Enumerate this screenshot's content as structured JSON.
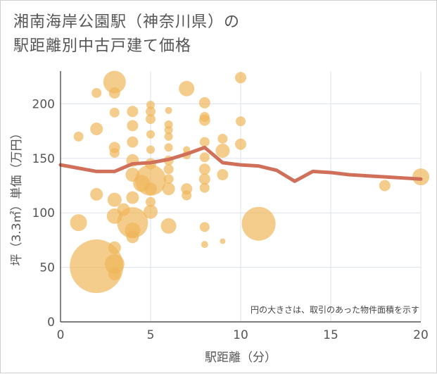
{
  "header": {
    "title_line1": "湘南海岸公園駅（神奈川県）の",
    "title_line2": "駅距離別中古戸建て価格"
  },
  "chart_data": {
    "type": "scatter",
    "title": "湘南海岸公園駅（神奈川県）の駅距離別中古戸建て価格",
    "xlabel": "駅距離（分）",
    "ylabel": "坪（3.3㎡）単価（万円）",
    "xlim": [
      0,
      20
    ],
    "ylim": [
      0,
      230
    ],
    "x_ticks": [
      0,
      5,
      10,
      15,
      20
    ],
    "y_ticks": [
      0,
      50,
      100,
      150,
      200
    ],
    "x_tick_labels": [
      "0",
      "5",
      "10",
      "15",
      "20"
    ],
    "y_tick_labels": [
      "0",
      "50",
      "100",
      "150",
      "200"
    ],
    "note": "円の大きさは、取引のあった物件面積を示す",
    "bubble_color": "#f0b65a",
    "line_color": "#d0705a",
    "bubbles": [
      {
        "x": 2,
        "y": 51,
        "s": 38
      },
      {
        "x": 3,
        "y": 53,
        "s": 14
      },
      {
        "x": 3,
        "y": 44,
        "s": 9
      },
      {
        "x": 3,
        "y": 68,
        "s": 9
      },
      {
        "x": 1,
        "y": 91,
        "s": 12
      },
      {
        "x": 2,
        "y": 117,
        "s": 9
      },
      {
        "x": 3,
        "y": 112,
        "s": 10
      },
      {
        "x": 3,
        "y": 97,
        "s": 11
      },
      {
        "x": 3.5,
        "y": 103,
        "s": 9
      },
      {
        "x": 4,
        "y": 91,
        "s": 22
      },
      {
        "x": 4,
        "y": 84,
        "s": 11
      },
      {
        "x": 4,
        "y": 78,
        "s": 9
      },
      {
        "x": 4,
        "y": 114,
        "s": 9
      },
      {
        "x": 4,
        "y": 135,
        "s": 10
      },
      {
        "x": 4,
        "y": 148,
        "s": 9
      },
      {
        "x": 4,
        "y": 165,
        "s": 8
      },
      {
        "x": 4,
        "y": 180,
        "s": 8
      },
      {
        "x": 4,
        "y": 193,
        "s": 8
      },
      {
        "x": 4.5,
        "y": 127,
        "s": 12
      },
      {
        "x": 5,
        "y": 130,
        "s": 22
      },
      {
        "x": 5,
        "y": 101,
        "s": 10
      },
      {
        "x": 5,
        "y": 110,
        "s": 7
      },
      {
        "x": 5,
        "y": 122,
        "s": 9
      },
      {
        "x": 5,
        "y": 145,
        "s": 8
      },
      {
        "x": 5,
        "y": 158,
        "s": 6
      },
      {
        "x": 5,
        "y": 172,
        "s": 6
      },
      {
        "x": 5,
        "y": 186,
        "s": 7
      },
      {
        "x": 5,
        "y": 193,
        "s": 7
      },
      {
        "x": 5,
        "y": 199,
        "s": 6
      },
      {
        "x": 6,
        "y": 88,
        "s": 11
      },
      {
        "x": 6,
        "y": 122,
        "s": 9
      },
      {
        "x": 6,
        "y": 131,
        "s": 7
      },
      {
        "x": 6,
        "y": 140,
        "s": 7
      },
      {
        "x": 6,
        "y": 148,
        "s": 7
      },
      {
        "x": 6,
        "y": 160,
        "s": 6
      },
      {
        "x": 6,
        "y": 170,
        "s": 6
      },
      {
        "x": 6,
        "y": 176,
        "s": 6
      },
      {
        "x": 6,
        "y": 181,
        "s": 6
      },
      {
        "x": 6,
        "y": 194,
        "s": 5
      },
      {
        "x": 7,
        "y": 122,
        "s": 8
      },
      {
        "x": 7,
        "y": 116,
        "s": 7
      },
      {
        "x": 7,
        "y": 153,
        "s": 6
      },
      {
        "x": 7,
        "y": 158,
        "s": 5
      },
      {
        "x": 7,
        "y": 214,
        "s": 11
      },
      {
        "x": 8,
        "y": 87,
        "s": 7
      },
      {
        "x": 8,
        "y": 71,
        "s": 5
      },
      {
        "x": 8,
        "y": 123,
        "s": 7
      },
      {
        "x": 8,
        "y": 131,
        "s": 8
      },
      {
        "x": 8,
        "y": 140,
        "s": 8
      },
      {
        "x": 8,
        "y": 151,
        "s": 7
      },
      {
        "x": 8,
        "y": 165,
        "s": 7
      },
      {
        "x": 8,
        "y": 185,
        "s": 8
      },
      {
        "x": 8,
        "y": 188,
        "s": 7
      },
      {
        "x": 8,
        "y": 201,
        "s": 8
      },
      {
        "x": 9,
        "y": 74,
        "s": 4
      },
      {
        "x": 9,
        "y": 135,
        "s": 8
      },
      {
        "x": 9,
        "y": 157,
        "s": 10
      },
      {
        "x": 9,
        "y": 168,
        "s": 7
      },
      {
        "x": 10,
        "y": 163,
        "s": 8
      },
      {
        "x": 10,
        "y": 184,
        "s": 7
      },
      {
        "x": 10,
        "y": 224,
        "s": 8
      },
      {
        "x": 11,
        "y": 90,
        "s": 24
      },
      {
        "x": 3,
        "y": 220,
        "s": 16
      },
      {
        "x": 3,
        "y": 210,
        "s": 8
      },
      {
        "x": 2,
        "y": 210,
        "s": 7
      },
      {
        "x": 2,
        "y": 177,
        "s": 9
      },
      {
        "x": 3,
        "y": 192,
        "s": 7
      },
      {
        "x": 3,
        "y": 160,
        "s": 8
      },
      {
        "x": 3,
        "y": 155,
        "s": 7
      },
      {
        "x": 1,
        "y": 170,
        "s": 7
      },
      {
        "x": 18,
        "y": 125,
        "s": 8
      },
      {
        "x": 20,
        "y": 133,
        "s": 12
      }
    ],
    "trend": {
      "x": [
        0,
        1,
        2,
        3,
        4,
        5,
        6,
        7,
        8,
        9,
        10,
        11,
        12,
        13,
        14,
        15,
        16,
        17,
        18,
        19,
        20
      ],
      "y": [
        144,
        141,
        138,
        138,
        145,
        146,
        149,
        154,
        160,
        146,
        144,
        143,
        139,
        129,
        138,
        137,
        135,
        134,
        133,
        132,
        131
      ]
    }
  }
}
